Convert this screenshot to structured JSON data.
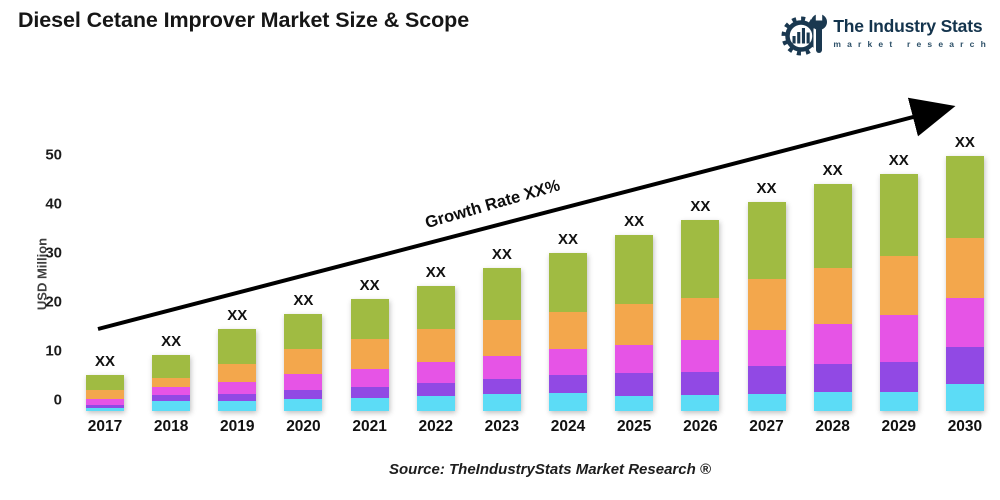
{
  "header": {
    "title": "Diesel Cetane Improver Market Size & Scope"
  },
  "brand": {
    "name": "The Industry Stats",
    "tagline": "market research",
    "logo_icon": "gear-wrench-barchart-icon",
    "color": "#14344d"
  },
  "footer": {
    "source": "Source: TheIndustryStats Market Research ®"
  },
  "chart_data": {
    "type": "bar",
    "stacked": true,
    "title": "Diesel Cetane Improver Market Size & Scope",
    "xlabel": "",
    "ylabel": "USD Million",
    "ylim": [
      0,
      50
    ],
    "yticks": [
      0,
      10,
      20,
      30,
      40,
      50
    ],
    "grid": false,
    "legend": "none",
    "bar_value_label": "XX",
    "growth_annotation": "Growth Rate XX%",
    "categories": [
      "2017",
      "2018",
      "2019",
      "2020",
      "2021",
      "2022",
      "2023",
      "2024",
      "2025",
      "2026",
      "2027",
      "2028",
      "2029",
      "2030"
    ],
    "series": [
      {
        "name": "segment-1-cyan",
        "color": "#5cdcf6",
        "values": [
          0.6,
          2.0,
          2.0,
          2.3,
          2.6,
          2.9,
          3.3,
          3.6,
          3.0,
          3.2,
          3.4,
          3.8,
          3.8,
          5.3
        ]
      },
      {
        "name": "segment-2-purple",
        "color": "#9149e4",
        "values": [
          0.6,
          1.2,
          1.4,
          1.8,
          2.2,
          2.6,
          2.9,
          3.4,
          4.4,
          4.4,
          5.4,
          5.4,
          5.9,
          7.3
        ]
      },
      {
        "name": "segment-3-magenta",
        "color": "#e654e6",
        "values": [
          1.1,
          1.6,
          2.2,
          3.1,
          3.5,
          4.1,
          4.6,
          5.2,
          5.5,
          6.4,
          7.0,
          7.8,
          9.1,
          9.6
        ]
      },
      {
        "name": "segment-4-orange",
        "color": "#f3a74c",
        "values": [
          1.9,
          1.6,
          3.6,
          5.0,
          5.8,
          6.4,
          7.1,
          7.2,
          8.0,
          8.2,
          10.0,
          11.1,
          11.5,
          11.8
        ]
      },
      {
        "name": "segment-5-green",
        "color": "#a0bb42",
        "values": [
          2.8,
          4.6,
          6.8,
          6.8,
          7.9,
          8.5,
          10.1,
          11.6,
          13.6,
          15.3,
          15.2,
          16.4,
          16.2,
          16.0
        ]
      }
    ],
    "totals_estimated_usd_million": [
      7,
      11,
      16,
      19,
      22,
      24.5,
      28,
      31,
      34.5,
      37.5,
      41,
      44.5,
      46.5,
      50
    ]
  }
}
